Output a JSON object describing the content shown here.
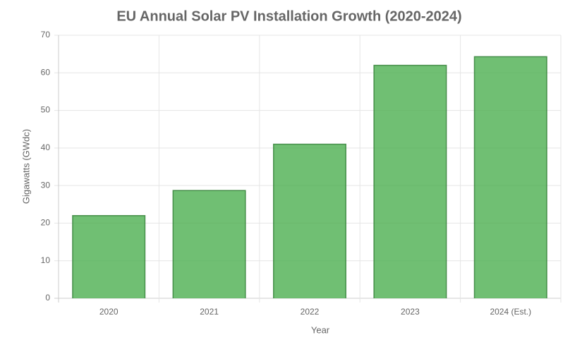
{
  "chart_data": {
    "type": "bar",
    "title": "EU Annual Solar PV Installation Growth (2020-2024)",
    "x_label": "Year",
    "y_label": "Gigawatts (GWdc)",
    "categories": [
      "2020",
      "2021",
      "2022",
      "2023",
      "2024 (Est.)"
    ],
    "values": [
      22,
      28.7,
      41,
      62,
      64.3
    ],
    "color": "#4caf50",
    "ylim": [
      0,
      70
    ],
    "yticks": [
      0,
      10,
      20,
      30,
      40,
      50,
      60,
      70
    ],
    "grid": true
  }
}
